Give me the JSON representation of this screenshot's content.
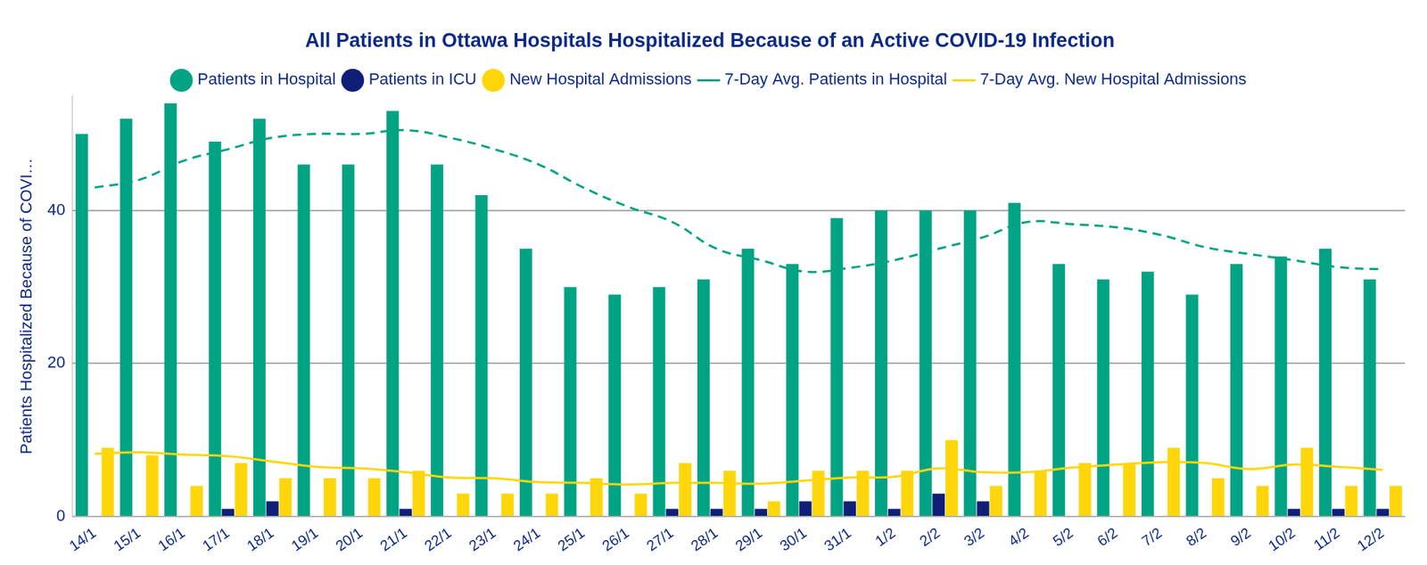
{
  "chart_data": {
    "type": "bar",
    "title": "All Patients in Ottawa Hospitals Hospitalized Because of an Active COVID-19 Infection",
    "y_label": "Patients Hospitalized Because of COVI…",
    "categories": [
      "14/1",
      "15/1",
      "16/1",
      "17/1",
      "18/1",
      "19/1",
      "20/1",
      "21/1",
      "22/1",
      "23/1",
      "24/1",
      "25/1",
      "26/1",
      "27/1",
      "28/1",
      "29/1",
      "30/1",
      "31/1",
      "1/2",
      "2/2",
      "3/2",
      "4/2",
      "5/2",
      "6/2",
      "7/2",
      "8/2",
      "9/2",
      "10/2",
      "11/2",
      "12/2"
    ],
    "series": [
      {
        "name": "Patients in Hospital",
        "type": "bar",
        "color": "#00a383",
        "values": [
          50,
          52,
          54,
          49,
          52,
          46,
          46,
          53,
          46,
          42,
          35,
          30,
          29,
          30,
          31,
          35,
          33,
          39,
          40,
          40,
          40,
          41,
          33,
          31,
          32,
          29,
          33,
          34,
          35,
          31
        ]
      },
      {
        "name": "Patients in ICU",
        "type": "bar",
        "color": "#0f1f78",
        "values": [
          0,
          0,
          0,
          1,
          2,
          0,
          0,
          1,
          0,
          0,
          0,
          0,
          0,
          1,
          1,
          1,
          2,
          2,
          1,
          3,
          2,
          0,
          0,
          0,
          0,
          0,
          0,
          1,
          1,
          1
        ]
      },
      {
        "name": "New Hospital Admissions",
        "type": "bar",
        "color": "#ffd60a",
        "values": [
          9,
          8,
          4,
          7,
          5,
          5,
          5,
          6,
          3,
          3,
          3,
          5,
          3,
          7,
          6,
          2,
          6,
          6,
          6,
          10,
          4,
          6,
          7,
          7,
          9,
          5,
          4,
          9,
          4,
          4
        ]
      },
      {
        "name": "7-Day Avg. Patients in Hospital",
        "type": "line",
        "line_style": "dashed",
        "color": "#00a383",
        "values": [
          43,
          44,
          46.5,
          48,
          49.5,
          50,
          50,
          50.5,
          49.5,
          48,
          46,
          43,
          40.5,
          38.5,
          35,
          33.5,
          32,
          32.5,
          33.5,
          35,
          36.5,
          38.5,
          38.2,
          37.8,
          36.8,
          35.2,
          34.3,
          33.5,
          32.6,
          32.3
        ]
      },
      {
        "name": "7-Day Avg. New Hospital Admissions",
        "type": "line",
        "line_style": "solid",
        "color": "#ffd60a",
        "values": [
          8.2,
          8.4,
          8.1,
          7.9,
          7.2,
          6.5,
          6.3,
          5.8,
          5.1,
          5.0,
          4.5,
          4.4,
          4.2,
          4.4,
          4.4,
          4.3,
          4.7,
          5.1,
          5.2,
          6.3,
          5.8,
          5.8,
          6.4,
          6.8,
          7.1,
          7.0,
          6.2,
          6.8,
          6.5,
          6.1
        ]
      }
    ],
    "ylim": [
      0,
      55
    ],
    "yticks": [
      0,
      20,
      40
    ],
    "grid": true,
    "legend": "top"
  }
}
